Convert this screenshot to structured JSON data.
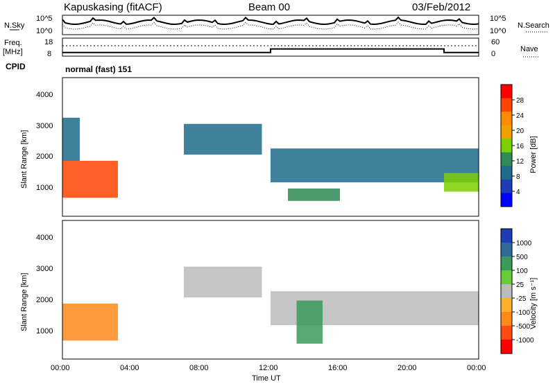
{
  "header": {
    "station": "Kapuskasing (fitACF)",
    "beam": "Beam 00",
    "date": "03/Feb/2012"
  },
  "noise_panel": {
    "left_label": "N.Sky",
    "right_label": "N.Search",
    "left_ticks": [
      "10^5",
      "10^0"
    ],
    "right_ticks": [
      "10^5",
      "10^0"
    ]
  },
  "freq_panel": {
    "left_label_line1": "Freq.",
    "left_label_line2": "[MHz]",
    "right_label": "Nave",
    "left_ticks": [
      "18",
      "8"
    ],
    "right_ticks": [
      "60",
      "0"
    ]
  },
  "cpid": {
    "label": "CPID",
    "text": "normal (fast) 151"
  },
  "power_panel": {
    "ylabel": "Slant Range [km]",
    "yticks": [
      "4000",
      "3000",
      "2000",
      "1000"
    ],
    "colorbar_label": "Power [dB]",
    "colorbar_ticks": [
      "28",
      "24",
      "20",
      "16",
      "12",
      "8",
      "4"
    ],
    "colors": [
      "#ff0000",
      "#ff4400",
      "#ff8c00",
      "#f0a000",
      "#7ccf00",
      "#2e8b57",
      "#1e6b8c",
      "#1e3cb4",
      "#0000ff"
    ]
  },
  "velocity_panel": {
    "ylabel": "Slant Range [km]",
    "yticks": [
      "4000",
      "3000",
      "2000",
      "1000"
    ],
    "colorbar_label": "Velocity [m s⁻¹]",
    "colorbar_ticks": [
      "1000",
      "500",
      "100",
      "25",
      "-25",
      "-100",
      "-500",
      "-1000"
    ],
    "colors": [
      "#1e3cb4",
      "#2e6b9c",
      "#3a9a5a",
      "#66cc33",
      "#bbbbbb",
      "#ffb030",
      "#ff8a1a",
      "#ff4a10",
      "#ff0000"
    ]
  },
  "xaxis": {
    "ticks": [
      "00:00",
      "04:00",
      "08:00",
      "12:00",
      "16:00",
      "20:00",
      "00:00"
    ],
    "label": "Time UT"
  },
  "chart_data": {
    "type": "heatmap",
    "x_range_hours": [
      0,
      24
    ],
    "y_range_km": [
      0,
      4500
    ],
    "grid": false,
    "power_regions": [
      {
        "t0": 0.0,
        "t1": 3.2,
        "r0": 600,
        "r1": 1800,
        "level_db": 28
      },
      {
        "t0": 0.0,
        "t1": 1.0,
        "r0": 1800,
        "r1": 3200,
        "level_db": 8
      },
      {
        "t0": 7.0,
        "t1": 11.5,
        "r0": 2000,
        "r1": 3000,
        "level_db": 8
      },
      {
        "t0": 12.0,
        "t1": 24.0,
        "r0": 1100,
        "r1": 2200,
        "level_db": 8
      },
      {
        "t0": 13.0,
        "t1": 16.0,
        "r0": 500,
        "r1": 900,
        "level_db": 12
      },
      {
        "t0": 22.0,
        "t1": 24.0,
        "r0": 800,
        "r1": 1400,
        "level_db": 16
      }
    ],
    "velocity_regions": [
      {
        "t0": 0.0,
        "t1": 3.2,
        "r0": 600,
        "r1": 1800,
        "velocity": -100
      },
      {
        "t0": 7.0,
        "t1": 11.5,
        "r0": 2000,
        "r1": 3000,
        "velocity": 0
      },
      {
        "t0": 12.0,
        "t1": 24.0,
        "r0": 1100,
        "r1": 2200,
        "velocity": 0
      },
      {
        "t0": 13.5,
        "t1": 15.0,
        "r0": 500,
        "r1": 1900,
        "velocity": 100
      }
    ],
    "tx_freq_mhz": [
      {
        "t0": 0,
        "t1": 12.0,
        "value": 10
      },
      {
        "t0": 12.0,
        "t1": 22.0,
        "value": 12
      },
      {
        "t0": 22.0,
        "t1": 24.0,
        "value": 10
      }
    ]
  }
}
